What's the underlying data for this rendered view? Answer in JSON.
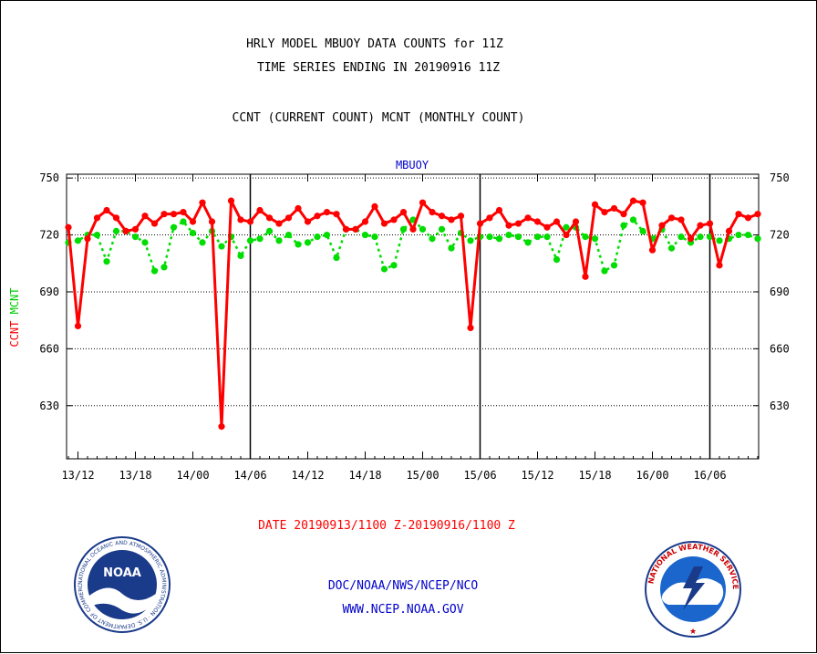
{
  "title_line1": "HRLY MODEL MBUOY DATA COUNTS for 11Z",
  "title_line2": "TIME SERIES ENDING IN 20190916 11Z",
  "title_line3": "CCNT (CURRENT COUNT) MCNT (MONTHLY COUNT)",
  "date_range": "DATE 20190913/1100 Z-20190916/1100 Z",
  "credit_org": "DOC/NOAA/NWS/NCEP/NCO",
  "credit_url": "WWW.NCEP.NOAA.GOV",
  "logo_left_text": "NOAA",
  "logo_left_ring": "NATIONAL OCEANIC AND ATMOSPHERIC ADMINISTRATION · U.S. DEPARTMENT OF COMMERCE",
  "logo_right_ring": "NATIONAL WEATHER SERVICE",
  "colors": {
    "ccnt": "#ff0000",
    "mcnt": "#00dd00",
    "label_blue": "#0000cc",
    "date_red": "#ff0000"
  },
  "chart_data": {
    "type": "line",
    "title": "MBUOY",
    "ylabel_ccnt": "CCNT",
    "ylabel_mcnt": "MCNT",
    "xlabel": "",
    "ylim": [
      602,
      752
    ],
    "yticks": [
      630,
      660,
      690,
      720,
      750
    ],
    "xticks": [
      "13/12",
      "13/18",
      "14/00",
      "14/06",
      "14/12",
      "14/18",
      "15/00",
      "15/06",
      "15/12",
      "15/18",
      "16/00",
      "16/06"
    ],
    "grid": true,
    "series": [
      {
        "name": "CCNT",
        "color": "#ff0000",
        "style": "solid",
        "values": [
          724,
          672,
          718,
          729,
          733,
          729,
          722,
          723,
          730,
          726,
          731,
          731,
          732,
          727,
          737,
          727,
          619,
          738,
          728,
          727,
          733,
          729,
          726,
          729,
          734,
          727,
          730,
          732,
          731,
          723,
          723,
          727,
          735,
          726,
          728,
          732,
          723,
          737,
          732,
          730,
          728,
          730,
          671,
          726,
          729,
          733,
          725,
          726,
          729,
          727,
          724,
          727,
          720,
          727,
          698,
          736,
          732,
          734,
          731,
          738,
          737,
          712,
          725,
          729,
          728,
          718,
          725,
          726,
          704,
          722,
          731,
          729,
          731
        ]
      },
      {
        "name": "MCNT",
        "color": "#00dd00",
        "style": "dotted",
        "values": [
          716,
          717,
          720,
          720,
          706,
          722,
          722,
          719,
          716,
          701,
          703,
          724,
          727,
          721,
          716,
          722,
          714,
          719,
          709,
          717,
          718,
          722,
          717,
          720,
          715,
          716,
          719,
          720,
          708,
          723,
          723,
          720,
          719,
          702,
          704,
          723,
          728,
          723,
          718,
          723,
          713,
          721,
          717,
          719,
          719,
          718,
          720,
          719,
          716,
          719,
          719,
          707,
          724,
          724,
          719,
          718,
          701,
          704,
          725,
          728,
          722,
          718,
          723,
          713,
          719,
          716,
          719,
          719,
          717,
          718,
          720,
          720,
          718
        ]
      }
    ]
  }
}
